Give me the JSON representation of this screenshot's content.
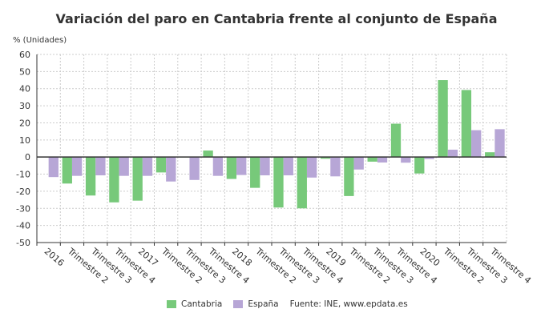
{
  "chart_data": {
    "type": "bar",
    "title": "Variación del paro en Cantabria frente al conjunto de España",
    "ylabel": "% (Unidades)",
    "xlabel": "",
    "ylim": [
      -50,
      60
    ],
    "yticks": [
      60,
      50,
      40,
      30,
      20,
      10,
      0,
      -10,
      -20,
      -30,
      -40,
      -50
    ],
    "grid": true,
    "legend_position": "bottom",
    "categories": [
      "2016",
      "Trimestre 2",
      "Trimestre 3",
      "Trimestre 4",
      "2017",
      "Trimestre 2",
      "Trimestre 3",
      "Trimestre 4",
      "2018",
      "Trimestre 2",
      "Trimestre 3",
      "Trimestre 4",
      "2019",
      "Trimestre 2",
      "Trimestre 3",
      "Trimestre 4",
      "2020",
      "Trimestre 2",
      "Trimestre 3",
      "Trimestre 4"
    ],
    "series": [
      {
        "name": "Cantabria",
        "color": "#77c97a",
        "values": [
          0.3,
          -15.5,
          -22.5,
          -26.5,
          -25.5,
          -9,
          0,
          3.8,
          -12.8,
          -18,
          -29.5,
          -30,
          -1,
          -22.8,
          -2.7,
          19.5,
          -9.6,
          45,
          39.2,
          2.8
        ]
      },
      {
        "name": "España",
        "color": "#b7a6d6",
        "values": [
          -11.7,
          -11,
          -10.7,
          -11,
          -11,
          -14.3,
          -13.4,
          -11,
          -10.5,
          -10.7,
          -10.7,
          -12,
          -11.3,
          -7.3,
          -3.2,
          -3.3,
          -1.2,
          4.3,
          15.7,
          16.3
        ]
      }
    ],
    "source": "Fuente: INE, www.epdata.es"
  }
}
